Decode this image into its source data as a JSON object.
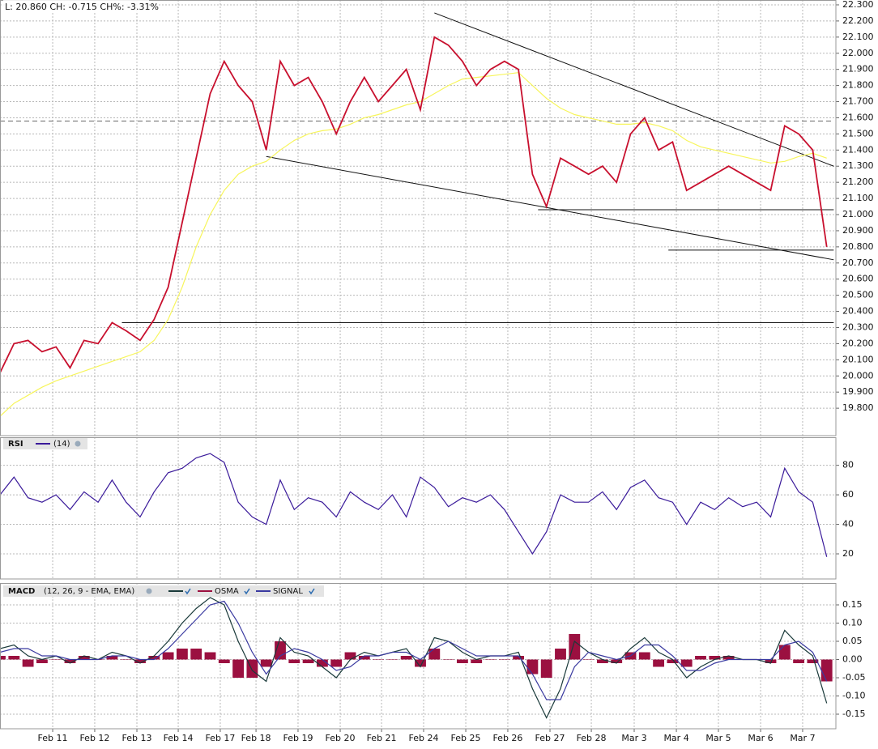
{
  "chart_data": [
    {
      "type": "line",
      "title": "L: 20.860 CH: -0.715 CH%: -3.31%",
      "x": [
        0,
        1,
        2,
        3,
        4,
        5,
        6,
        7,
        8,
        9,
        10,
        11,
        12,
        13,
        14,
        15,
        16,
        17,
        18,
        19,
        20,
        21,
        22,
        23,
        24,
        25,
        26,
        27,
        28,
        29,
        30,
        31,
        32,
        33,
        34,
        35,
        36,
        37,
        38,
        39,
        40,
        41,
        42,
        43,
        44,
        45,
        46,
        47,
        48,
        49,
        50,
        51,
        52,
        53,
        54,
        55,
        56,
        57,
        58,
        59
      ],
      "xlim": [
        0,
        60
      ],
      "xticks": [
        {
          "value": 3.76,
          "label": "Feb 11"
        },
        {
          "value": 6.76,
          "label": "Feb 12"
        },
        {
          "value": 9.77,
          "label": "Feb 13"
        },
        {
          "value": 12.72,
          "label": "Feb 14"
        },
        {
          "value": 15.72,
          "label": "Feb 17"
        },
        {
          "value": 18.27,
          "label": "Feb 18"
        },
        {
          "value": 21.27,
          "label": "Feb 19"
        },
        {
          "value": 24.28,
          "label": "Feb 20"
        },
        {
          "value": 27.23,
          "label": "Feb 21"
        },
        {
          "value": 30.23,
          "label": "Feb 24"
        },
        {
          "value": 33.24,
          "label": "Feb 25"
        },
        {
          "value": 36.24,
          "label": "Feb 26"
        },
        {
          "value": 39.25,
          "label": "Feb 27"
        },
        {
          "value": 42.2,
          "label": "Feb 28"
        },
        {
          "value": 45.26,
          "label": "Mar 3"
        },
        {
          "value": 48.27,
          "label": "Mar 4"
        },
        {
          "value": 51.27,
          "label": "Mar 5"
        },
        {
          "value": 54.28,
          "label": "Mar 6"
        },
        {
          "value": 57.28,
          "label": "Mar 7"
        }
      ],
      "ylim": [
        19.63,
        22.33
      ],
      "yticks": [
        {
          "value": 19.8,
          "label": "19.800"
        },
        {
          "value": 19.9,
          "label": "19.900"
        },
        {
          "value": 20.0,
          "label": "20.000"
        },
        {
          "value": 20.1,
          "label": "20.100"
        },
        {
          "value": 20.2,
          "label": "20.200"
        },
        {
          "value": 20.3,
          "label": "20.300"
        },
        {
          "value": 20.4,
          "label": "20.400"
        },
        {
          "value": 20.5,
          "label": "20.500"
        },
        {
          "value": 20.6,
          "label": "20.600"
        },
        {
          "value": 20.7,
          "label": "20.700"
        },
        {
          "value": 20.8,
          "label": "20.800"
        },
        {
          "value": 20.9,
          "label": "20.900"
        },
        {
          "value": 21.0,
          "label": "21.000"
        },
        {
          "value": 21.1,
          "label": "21.100"
        },
        {
          "value": 21.2,
          "label": "21.200"
        },
        {
          "value": 21.3,
          "label": "21.300"
        },
        {
          "value": 21.4,
          "label": "21.400"
        },
        {
          "value": 21.5,
          "label": "21.500"
        },
        {
          "value": 21.6,
          "label": "21.600"
        },
        {
          "value": 21.7,
          "label": "21.700"
        },
        {
          "value": 21.8,
          "label": "21.800"
        },
        {
          "value": 21.9,
          "label": "21.900"
        },
        {
          "value": 22.0,
          "label": "22.000"
        },
        {
          "value": 22.1,
          "label": "22.100"
        },
        {
          "value": 22.2,
          "label": "22.200"
        },
        {
          "value": 22.3,
          "label": "22.300"
        }
      ],
      "grid": true,
      "series": [
        {
          "color": "#f7f55c",
          "values": [
            19.75,
            19.83,
            19.88,
            19.93,
            19.97,
            20.0,
            20.03,
            20.06,
            20.09,
            20.12,
            20.15,
            20.22,
            20.35,
            20.55,
            20.8,
            21.0,
            21.15,
            21.25,
            21.3,
            21.33,
            21.4,
            21.46,
            21.5,
            21.52,
            21.53,
            21.56,
            21.6,
            21.62,
            21.65,
            21.68,
            21.7,
            21.75,
            21.8,
            21.84,
            21.85,
            21.86,
            21.87,
            21.88,
            21.8,
            21.72,
            21.66,
            21.62,
            21.6,
            21.58,
            21.56,
            21.56,
            21.57,
            21.55,
            21.52,
            21.46,
            21.42,
            21.4,
            21.38,
            21.36,
            21.34,
            21.32,
            21.33,
            21.36,
            21.38,
            21.35
          ]
        },
        {
          "color": "#c8102e",
          "values": [
            20.02,
            20.2,
            20.22,
            20.15,
            20.18,
            20.05,
            20.22,
            20.2,
            20.33,
            20.28,
            20.22,
            20.35,
            20.55,
            20.95,
            21.35,
            21.75,
            21.95,
            21.8,
            21.7,
            21.4,
            21.95,
            21.8,
            21.85,
            21.7,
            21.5,
            21.7,
            21.85,
            21.7,
            21.8,
            21.9,
            21.65,
            22.1,
            22.05,
            21.95,
            21.8,
            21.9,
            21.95,
            21.9,
            21.25,
            21.05,
            21.35,
            21.3,
            21.25,
            21.3,
            21.2,
            21.5,
            21.6,
            21.4,
            21.45,
            21.15,
            21.2,
            21.25,
            21.3,
            21.25,
            21.2,
            21.15,
            21.55,
            21.5,
            21.4,
            20.8
          ]
        }
      ],
      "trendlines": [
        {
          "x": [
            31,
            59.5
          ],
          "y": [
            22.25,
            21.3
          ]
        },
        {
          "x": [
            19,
            59.5
          ],
          "y": [
            21.36,
            20.72
          ]
        }
      ],
      "hlines": [
        {
          "x": [
            0,
            59.5
          ],
          "value": 21.58,
          "dashed": true
        },
        {
          "x": [
            38.4,
            59.5
          ],
          "value": 21.03,
          "dashed": false
        },
        {
          "x": [
            47.7,
            59.5
          ],
          "value": 20.78,
          "dashed": false
        },
        {
          "x": [
            8.7,
            59.5
          ],
          "value": 20.33,
          "dashed": false
        }
      ]
    },
    {
      "type": "line",
      "title": "RSI",
      "subtitle": "(14)",
      "ylim": [
        3,
        99
      ],
      "yticks": [
        20,
        40,
        60,
        80
      ],
      "grid": true,
      "series": [
        {
          "color": "#3a1a9a",
          "values": [
            60,
            72,
            58,
            55,
            60,
            50,
            62,
            55,
            70,
            55,
            45,
            62,
            75,
            78,
            85,
            88,
            82,
            55,
            45,
            40,
            70,
            50,
            58,
            55,
            45,
            62,
            55,
            50,
            60,
            45,
            72,
            65,
            52,
            58,
            55,
            60,
            50,
            35,
            20,
            35,
            60,
            55,
            55,
            62,
            50,
            65,
            70,
            58,
            55,
            40,
            55,
            50,
            58,
            52,
            55,
            45,
            78,
            62,
            55,
            18
          ]
        }
      ]
    },
    {
      "type": "line",
      "title": "MACD",
      "subtitle": "(12, 26, 9 - EMA, EMA)",
      "ylim": [
        -0.19,
        0.21
      ],
      "yticks": [
        {
          "value": -0.15,
          "label": "-0.15"
        },
        {
          "value": -0.1,
          "label": "-0.10"
        },
        {
          "value": -0.05,
          "label": "-0.05"
        },
        {
          "value": 0,
          "label": "0.00"
        },
        {
          "value": 0.05,
          "label": "0.05"
        },
        {
          "value": 0.1,
          "label": "0.10"
        },
        {
          "value": 0.15,
          "label": "0.15"
        }
      ],
      "grid": true,
      "series": [
        {
          "name": "OSMA",
          "color": "#9b1040",
          "style": "bar",
          "values": [
            0.01,
            0.01,
            -0.02,
            -0.01,
            0.0,
            -0.01,
            0.01,
            0.0,
            0.01,
            0.0,
            -0.01,
            0.01,
            0.02,
            0.03,
            0.03,
            0.02,
            -0.01,
            -0.05,
            -0.05,
            -0.02,
            0.05,
            -0.01,
            -0.01,
            -0.02,
            -0.02,
            0.02,
            0.01,
            0.0,
            0.0,
            0.01,
            -0.02,
            0.03,
            0.0,
            -0.01,
            -0.01,
            0.0,
            0.0,
            0.01,
            -0.04,
            -0.05,
            0.03,
            0.07,
            0.0,
            -0.01,
            -0.01,
            0.02,
            0.02,
            -0.02,
            -0.01,
            -0.02,
            0.01,
            0.01,
            0.01,
            0.0,
            0.0,
            -0.01,
            0.04,
            -0.01,
            -0.01,
            -0.06
          ]
        },
        {
          "color": "#1a3a3a",
          "values": [
            0.03,
            0.04,
            0.01,
            0.0,
            0.01,
            -0.01,
            0.01,
            0.0,
            0.02,
            0.01,
            -0.01,
            0.01,
            0.05,
            0.1,
            0.14,
            0.17,
            0.15,
            0.05,
            -0.03,
            -0.06,
            0.06,
            0.02,
            0.01,
            -0.02,
            -0.05,
            0.0,
            0.02,
            0.01,
            0.02,
            0.03,
            -0.02,
            0.06,
            0.05,
            0.02,
            0.0,
            0.01,
            0.01,
            0.02,
            -0.08,
            -0.16,
            -0.08,
            0.05,
            0.02,
            0.0,
            -0.01,
            0.03,
            0.06,
            0.02,
            0.0,
            -0.05,
            -0.02,
            0.0,
            0.01,
            0.0,
            0.0,
            -0.01,
            0.08,
            0.04,
            0.01,
            -0.12
          ]
        },
        {
          "name": "SIGNAL",
          "color": "#3a3aa0",
          "values": [
            0.02,
            0.03,
            0.03,
            0.01,
            0.01,
            0.0,
            0.0,
            0.0,
            0.01,
            0.01,
            0.0,
            0.0,
            0.03,
            0.07,
            0.11,
            0.15,
            0.16,
            0.1,
            0.02,
            -0.04,
            0.01,
            0.03,
            0.02,
            0.0,
            -0.03,
            -0.02,
            0.01,
            0.01,
            0.02,
            0.02,
            0.0,
            0.03,
            0.05,
            0.03,
            0.01,
            0.01,
            0.01,
            0.01,
            -0.04,
            -0.11,
            -0.11,
            -0.02,
            0.02,
            0.01,
            0.0,
            0.01,
            0.04,
            0.04,
            0.01,
            -0.03,
            -0.03,
            -0.01,
            0.0,
            0.0,
            0.0,
            0.0,
            0.04,
            0.05,
            0.02,
            -0.06
          ]
        }
      ]
    }
  ]
}
